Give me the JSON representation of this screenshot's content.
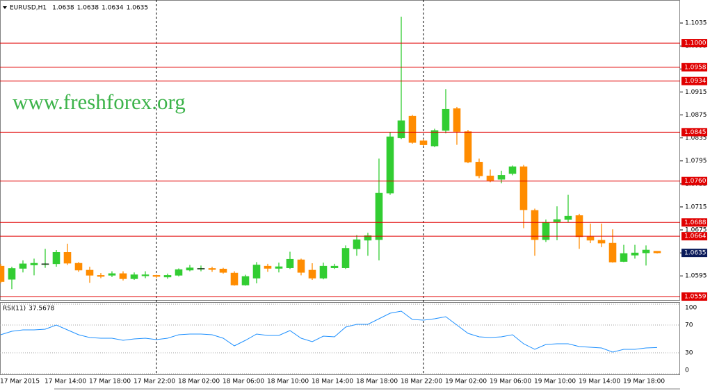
{
  "chart_data": {
    "type": "candlestick",
    "title": "EURUSD,H1",
    "header_values": [
      1.0638,
      1.0638,
      1.0634,
      1.0635
    ],
    "watermark": "www.freshforex.org",
    "categories": [
      "17 Mar 2015",
      null,
      null,
      null,
      "17 Mar 14:00",
      null,
      null,
      null,
      "17 Mar 18:00",
      null,
      null,
      null,
      "17 Mar 22:00",
      null,
      null,
      null,
      "18 Mar 02:00",
      null,
      null,
      null,
      "18 Mar 06:00",
      null,
      null,
      null,
      "18 Mar 10:00",
      null,
      null,
      null,
      "18 Mar 14:00",
      null,
      null,
      null,
      "18 Mar 18:00",
      null,
      null,
      null,
      "18 Mar 22:00",
      null,
      null,
      null,
      "19 Mar 02:00",
      null,
      null,
      null,
      "19 Mar 06:00",
      null,
      null,
      null,
      "19 Mar 10:00",
      null,
      null,
      null,
      "19 Mar 14:00",
      null,
      null,
      null,
      "19 Mar 18:00",
      null,
      null,
      null
    ],
    "ohlc": [
      [
        1.0612,
        1.0616,
        1.0582,
        1.0585
      ],
      [
        1.0589,
        1.0611,
        1.0572,
        1.0608
      ],
      [
        1.0608,
        1.0622,
        1.0601,
        1.0616
      ],
      [
        1.0614,
        1.0625,
        1.0596,
        1.0617
      ],
      [
        1.0616,
        1.0642,
        1.0609,
        1.0616
      ],
      [
        1.0616,
        1.064,
        1.0611,
        1.0636
      ],
      [
        1.0636,
        1.0651,
        1.0614,
        1.0617
      ],
      [
        1.0617,
        1.0619,
        1.0602,
        1.0605
      ],
      [
        1.0605,
        1.0611,
        1.0583,
        1.0596
      ],
      [
        1.0596,
        1.06,
        1.0591,
        1.0594
      ],
      [
        1.0596,
        1.0603,
        1.0593,
        1.0599
      ],
      [
        1.0599,
        1.0603,
        1.0587,
        1.059
      ],
      [
        1.059,
        1.0601,
        1.0588,
        1.0597
      ],
      [
        1.0595,
        1.0603,
        1.0591,
        1.0597
      ],
      [
        1.0596,
        1.0597,
        1.0591,
        1.0594
      ],
      [
        1.0593,
        1.0599,
        1.059,
        1.0596
      ],
      [
        1.0596,
        1.0608,
        1.0594,
        1.0606
      ],
      [
        1.0605,
        1.0614,
        1.0603,
        1.0609
      ],
      [
        1.0608,
        1.0613,
        1.0603,
        1.0608
      ],
      [
        1.0608,
        1.0611,
        1.0602,
        1.0606
      ],
      [
        1.0607,
        1.0609,
        1.0599,
        1.0601
      ],
      [
        1.06,
        1.0603,
        1.0578,
        1.0579
      ],
      [
        1.0579,
        1.0597,
        1.0578,
        1.0594
      ],
      [
        1.0591,
        1.0619,
        1.0582,
        1.0614
      ],
      [
        1.0612,
        1.0616,
        1.0602,
        1.0608
      ],
      [
        1.0608,
        1.0618,
        1.0601,
        1.0611
      ],
      [
        1.0609,
        1.0637,
        1.0607,
        1.0624
      ],
      [
        1.0623,
        1.0625,
        1.0596,
        1.0601
      ],
      [
        1.0605,
        1.0617,
        1.0588,
        1.0591
      ],
      [
        1.0591,
        1.0618,
        1.0589,
        1.0612
      ],
      [
        1.0609,
        1.0616,
        1.0607,
        1.0612
      ],
      [
        1.0609,
        1.0648,
        1.0607,
        1.0643
      ],
      [
        1.0642,
        1.0666,
        1.063,
        1.0658
      ],
      [
        1.0657,
        1.067,
        1.063,
        1.0665
      ],
      [
        1.0658,
        1.0799,
        1.0622,
        1.0739
      ],
      [
        1.0739,
        1.0845,
        1.0736,
        1.0837
      ],
      [
        1.0835,
        1.1046,
        1.0833,
        1.0865
      ],
      [
        1.0873,
        1.0875,
        1.0825,
        1.0827
      ],
      [
        1.083,
        1.0833,
        1.0821,
        1.0823
      ],
      [
        1.0821,
        1.0851,
        1.0819,
        1.0848
      ],
      [
        1.0848,
        1.092,
        1.0843,
        1.0885
      ],
      [
        1.0886,
        1.0889,
        1.0823,
        1.0846
      ],
      [
        1.0846,
        1.0849,
        1.0791,
        1.0793
      ],
      [
        1.0793,
        1.0799,
        1.0765,
        1.0769
      ],
      [
        1.0769,
        1.078,
        1.0758,
        1.0761
      ],
      [
        1.0763,
        1.0778,
        1.0756,
        1.077
      ],
      [
        1.0773,
        1.0787,
        1.077,
        1.0785
      ],
      [
        1.0785,
        1.0788,
        1.0678,
        1.071
      ],
      [
        1.0709,
        1.0712,
        1.063,
        1.0658
      ],
      [
        1.0658,
        1.0693,
        1.0654,
        1.0688
      ],
      [
        1.0689,
        1.0716,
        1.0657,
        1.0693
      ],
      [
        1.0693,
        1.0736,
        1.0688,
        1.0699
      ],
      [
        1.07,
        1.0703,
        1.0642,
        1.0663
      ],
      [
        1.0663,
        1.0686,
        1.0652,
        1.0657
      ],
      [
        1.0657,
        1.0686,
        1.0645,
        1.0652
      ],
      [
        1.0652,
        1.0676,
        1.0618,
        1.0619
      ],
      [
        1.062,
        1.0649,
        1.0619,
        1.0634
      ],
      [
        1.0631,
        1.0649,
        1.0625,
        1.0635
      ],
      [
        1.0635,
        1.0648,
        1.0613,
        1.064
      ],
      [
        1.0638,
        1.0638,
        1.0634,
        1.0635
      ]
    ],
    "up_color": "#32cd32",
    "down_color": "#ff8c00",
    "ylim": [
      1.0553,
      1.1075
    ],
    "yticks": [
      1.1035,
      1.0995,
      1.0955,
      1.0915,
      1.0875,
      1.0835,
      1.0795,
      1.0755,
      1.0715,
      1.0675,
      1.0635,
      1.0595
    ],
    "levels": [
      {
        "value": 1.1,
        "label": "1.1000"
      },
      1.0958,
      1.0934,
      1.0845,
      {
        "value": 1.076,
        "label": "1.0760"
      },
      1.0688,
      1.0664,
      1.0559
    ],
    "level_color": "#e00000",
    "rsi": {
      "label": "RSI(11)",
      "color": "#1e90ff",
      "ylim": [
        0,
        100
      ],
      "yticks": [
        100,
        70,
        30,
        0
      ],
      "values": [
        56,
        61,
        63,
        63,
        64,
        70,
        63,
        56,
        52,
        51,
        51,
        48,
        50,
        51,
        49,
        51,
        56,
        57,
        57,
        56,
        51,
        40,
        48,
        57,
        55,
        55,
        62,
        51,
        46,
        54,
        53,
        67,
        71,
        71,
        79,
        87,
        90,
        78,
        77,
        79,
        82,
        70,
        58,
        53,
        52,
        53,
        56,
        43,
        35,
        42,
        43,
        43,
        39,
        38,
        37,
        31,
        35,
        35,
        37,
        37.5678
      ]
    }
  }
}
